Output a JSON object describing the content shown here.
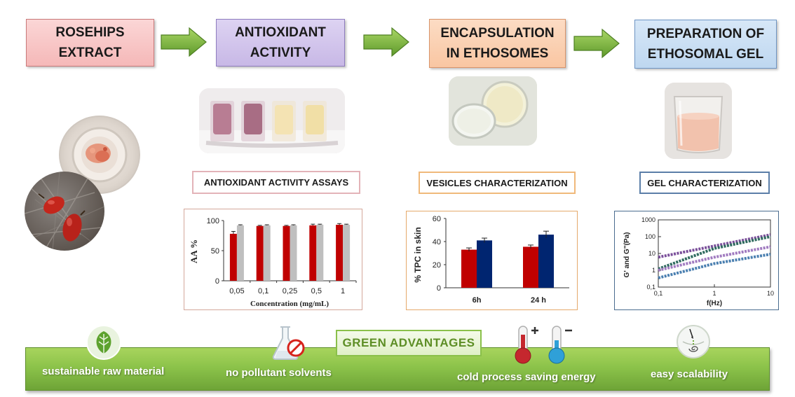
{
  "steps": [
    {
      "label": "ROSEHIPS\nEXTRACT"
    },
    {
      "label": "ANTIOXIDANT\nACTIVITY"
    },
    {
      "label": "ENCAPSULATION\nIN ETHOSOMES"
    },
    {
      "label": "PREPARATION OF\nETHOSOMAL GEL"
    }
  ],
  "labels": {
    "antioxidant_assays": "ANTIOXIDANT ACTIVITY  ASSAYS",
    "vesicles": "VESICLES CHARACTERIZATION",
    "gel": "GEL CHARACTERIZATION"
  },
  "green": {
    "title": "GREEN ADVANTAGES",
    "items": [
      "sustainable raw material",
      "no pollutant solvents",
      "cold process saving energy",
      "easy scalability"
    ]
  },
  "colors": {
    "red_bar": "#c00000",
    "grey_bar": "#bfbfbf",
    "navy_bar": "#002570",
    "green": "#8cc34a"
  },
  "icons": [
    "leaf-icon",
    "flask-no-icon",
    "hot-thermometer-icon",
    "cold-thermometer-icon",
    "scalability-icon"
  ],
  "chart_data": [
    {
      "type": "bar",
      "ylabel": "AA %",
      "xlabel": "Concentration (mg/mL)",
      "categories": [
        "0,05",
        "0,1",
        "0,25",
        "0,5",
        "1"
      ],
      "ylim": [
        0,
        100
      ],
      "yticks": [
        "0",
        "50",
        "100"
      ],
      "series": [
        {
          "values": [
            78,
            91,
            91,
            92,
            93
          ],
          "errors": [
            4,
            1,
            1,
            2,
            2
          ],
          "color": "#c00000"
        },
        {
          "values": [
            92,
            92,
            92,
            93,
            93
          ],
          "errors": [
            1,
            1,
            1,
            1,
            1
          ],
          "color": "#bfbfbf"
        }
      ]
    },
    {
      "type": "bar",
      "ylabel": "% TPC  in skin",
      "categories": [
        "6h",
        "24 h"
      ],
      "ylim": [
        0,
        60
      ],
      "yticks": [
        "0",
        "20",
        "40",
        "60"
      ],
      "series": [
        {
          "values": [
            33,
            35.5
          ],
          "errors": [
            1.5,
            1.5
          ],
          "color": "#c00000"
        },
        {
          "values": [
            41,
            46
          ],
          "errors": [
            2,
            3
          ],
          "color": "#002570"
        }
      ]
    },
    {
      "type": "line",
      "scale": "log",
      "ylabel": "G' and G''(Pa)",
      "xlabel": "f(Hz)",
      "xticks": [
        "0,1",
        "1",
        "10"
      ],
      "yticks": [
        "0,1",
        "1",
        "10",
        "100",
        "1000"
      ],
      "series": [
        {
          "x": [
            0.1,
            1,
            10
          ],
          "y": [
            6,
            28,
            130
          ],
          "color": "#7a4f9a"
        },
        {
          "x": [
            0.1,
            1,
            10
          ],
          "y": [
            1.2,
            20,
            100
          ],
          "color": "#2f6b5f"
        },
        {
          "x": [
            0.1,
            1,
            10
          ],
          "y": [
            1,
            6,
            25
          ],
          "color": "#a07ac0"
        },
        {
          "x": [
            0.1,
            1,
            10
          ],
          "y": [
            0.35,
            2.5,
            9
          ],
          "color": "#4a7fb0"
        }
      ]
    }
  ]
}
